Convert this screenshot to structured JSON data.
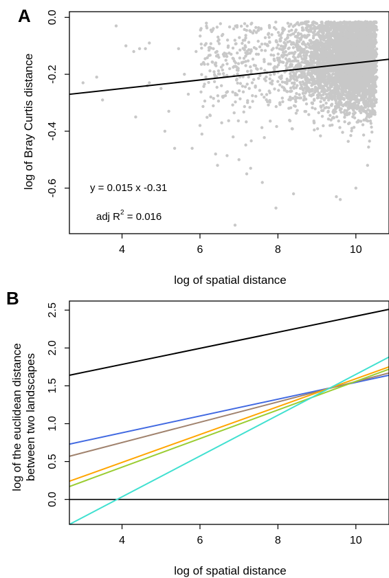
{
  "chart_data": [
    {
      "panel": "A",
      "type": "scatter",
      "title": "",
      "xlabel": "log of spatial distance",
      "ylabel": "log of Bray Curtis distance",
      "xlim": [
        2.65,
        10.85
      ],
      "ylim": [
        -0.76,
        0.02
      ],
      "xticks": [
        4,
        6,
        8,
        10
      ],
      "yticks": [
        0.0,
        -0.2,
        -0.4,
        -0.6
      ],
      "xtick_labels": [
        "4",
        "6",
        "8",
        "10"
      ],
      "ytick_labels": [
        "0.0",
        "-0.2",
        "-0.4",
        "-0.6"
      ],
      "grid": false,
      "point_color": "#c8c8c8",
      "sample_points": [
        [
          3.0,
          -0.23
        ],
        [
          3.35,
          -0.21
        ],
        [
          3.5,
          -0.29
        ],
        [
          3.85,
          -0.03
        ],
        [
          4.1,
          -0.1
        ],
        [
          4.3,
          -0.12
        ],
        [
          4.35,
          -0.35
        ],
        [
          4.45,
          -0.11
        ],
        [
          4.6,
          -0.11
        ],
        [
          4.65,
          -0.24
        ],
        [
          4.7,
          -0.09
        ],
        [
          4.7,
          -0.23
        ],
        [
          5.0,
          -0.25
        ],
        [
          5.1,
          -0.4
        ],
        [
          5.2,
          -0.33
        ],
        [
          5.35,
          -0.46
        ],
        [
          5.45,
          -0.11
        ],
        [
          5.6,
          -0.2
        ],
        [
          5.7,
          -0.27
        ],
        [
          5.8,
          -0.46
        ],
        [
          5.9,
          -0.12
        ],
        [
          6.0,
          -0.38
        ],
        [
          6.05,
          -0.41
        ],
        [
          6.15,
          -0.21
        ],
        [
          6.3,
          -0.05
        ],
        [
          6.4,
          -0.48
        ],
        [
          6.45,
          -0.52
        ],
        [
          6.55,
          -0.24
        ],
        [
          6.6,
          -0.13
        ],
        [
          6.85,
          -0.42
        ],
        [
          6.9,
          -0.73
        ],
        [
          7.0,
          -0.5
        ],
        [
          7.15,
          -0.08
        ],
        [
          7.2,
          -0.55
        ],
        [
          7.3,
          -0.53
        ],
        [
          7.45,
          -0.18
        ],
        [
          7.6,
          -0.58
        ],
        [
          7.75,
          -0.06
        ],
        [
          7.95,
          -0.67
        ],
        [
          8.4,
          -0.62
        ],
        [
          9.5,
          -0.63
        ],
        [
          9.6,
          -0.64
        ],
        [
          10.0,
          -0.6
        ],
        [
          10.3,
          -0.52
        ]
      ],
      "fit": {
        "slope": 0.015,
        "intercept": -0.31,
        "color": "#000000"
      },
      "annotations": {
        "equation": "y = 0.015 x -0.31",
        "adj_r2_prefix": "adj R",
        "adj_r2_superscript": "2",
        "adj_r2_value": " = 0.016"
      }
    },
    {
      "panel": "B",
      "type": "line",
      "title": "",
      "xlabel": "log of spatial distance",
      "ylabel_line1": "log of the euclidean distance",
      "ylabel_line2": "between two landscapes",
      "xlim": [
        2.65,
        10.85
      ],
      "ylim": [
        -0.33,
        2.62
      ],
      "xticks": [
        4,
        6,
        8,
        10
      ],
      "yticks": [
        0.0,
        0.5,
        1.0,
        1.5,
        2.0,
        2.5
      ],
      "xtick_labels": [
        "4",
        "6",
        "8",
        "10"
      ],
      "ytick_labels": [
        "0.0",
        "0.5",
        "1.0",
        "1.5",
        "2.0",
        "2.5"
      ],
      "grid": false,
      "hline": 0.0,
      "series": [
        {
          "color": "#000000",
          "x": [
            2.65,
            10.85
          ],
          "y": [
            1.64,
            2.51
          ]
        },
        {
          "color": "#4169e1",
          "x": [
            2.65,
            10.85
          ],
          "y": [
            0.73,
            1.64
          ]
        },
        {
          "color": "#a0826d",
          "x": [
            2.65,
            10.85
          ],
          "y": [
            0.57,
            1.67
          ]
        },
        {
          "color": "#ffa500",
          "x": [
            2.65,
            10.85
          ],
          "y": [
            0.24,
            1.75
          ]
        },
        {
          "color": "#9acd32",
          "x": [
            2.65,
            10.85
          ],
          "y": [
            0.17,
            1.72
          ]
        },
        {
          "color": "#40e0d0",
          "x": [
            2.65,
            10.85
          ],
          "y": [
            -0.33,
            1.88
          ]
        }
      ]
    }
  ],
  "panel_labels": {
    "a": "A",
    "b": "B"
  }
}
